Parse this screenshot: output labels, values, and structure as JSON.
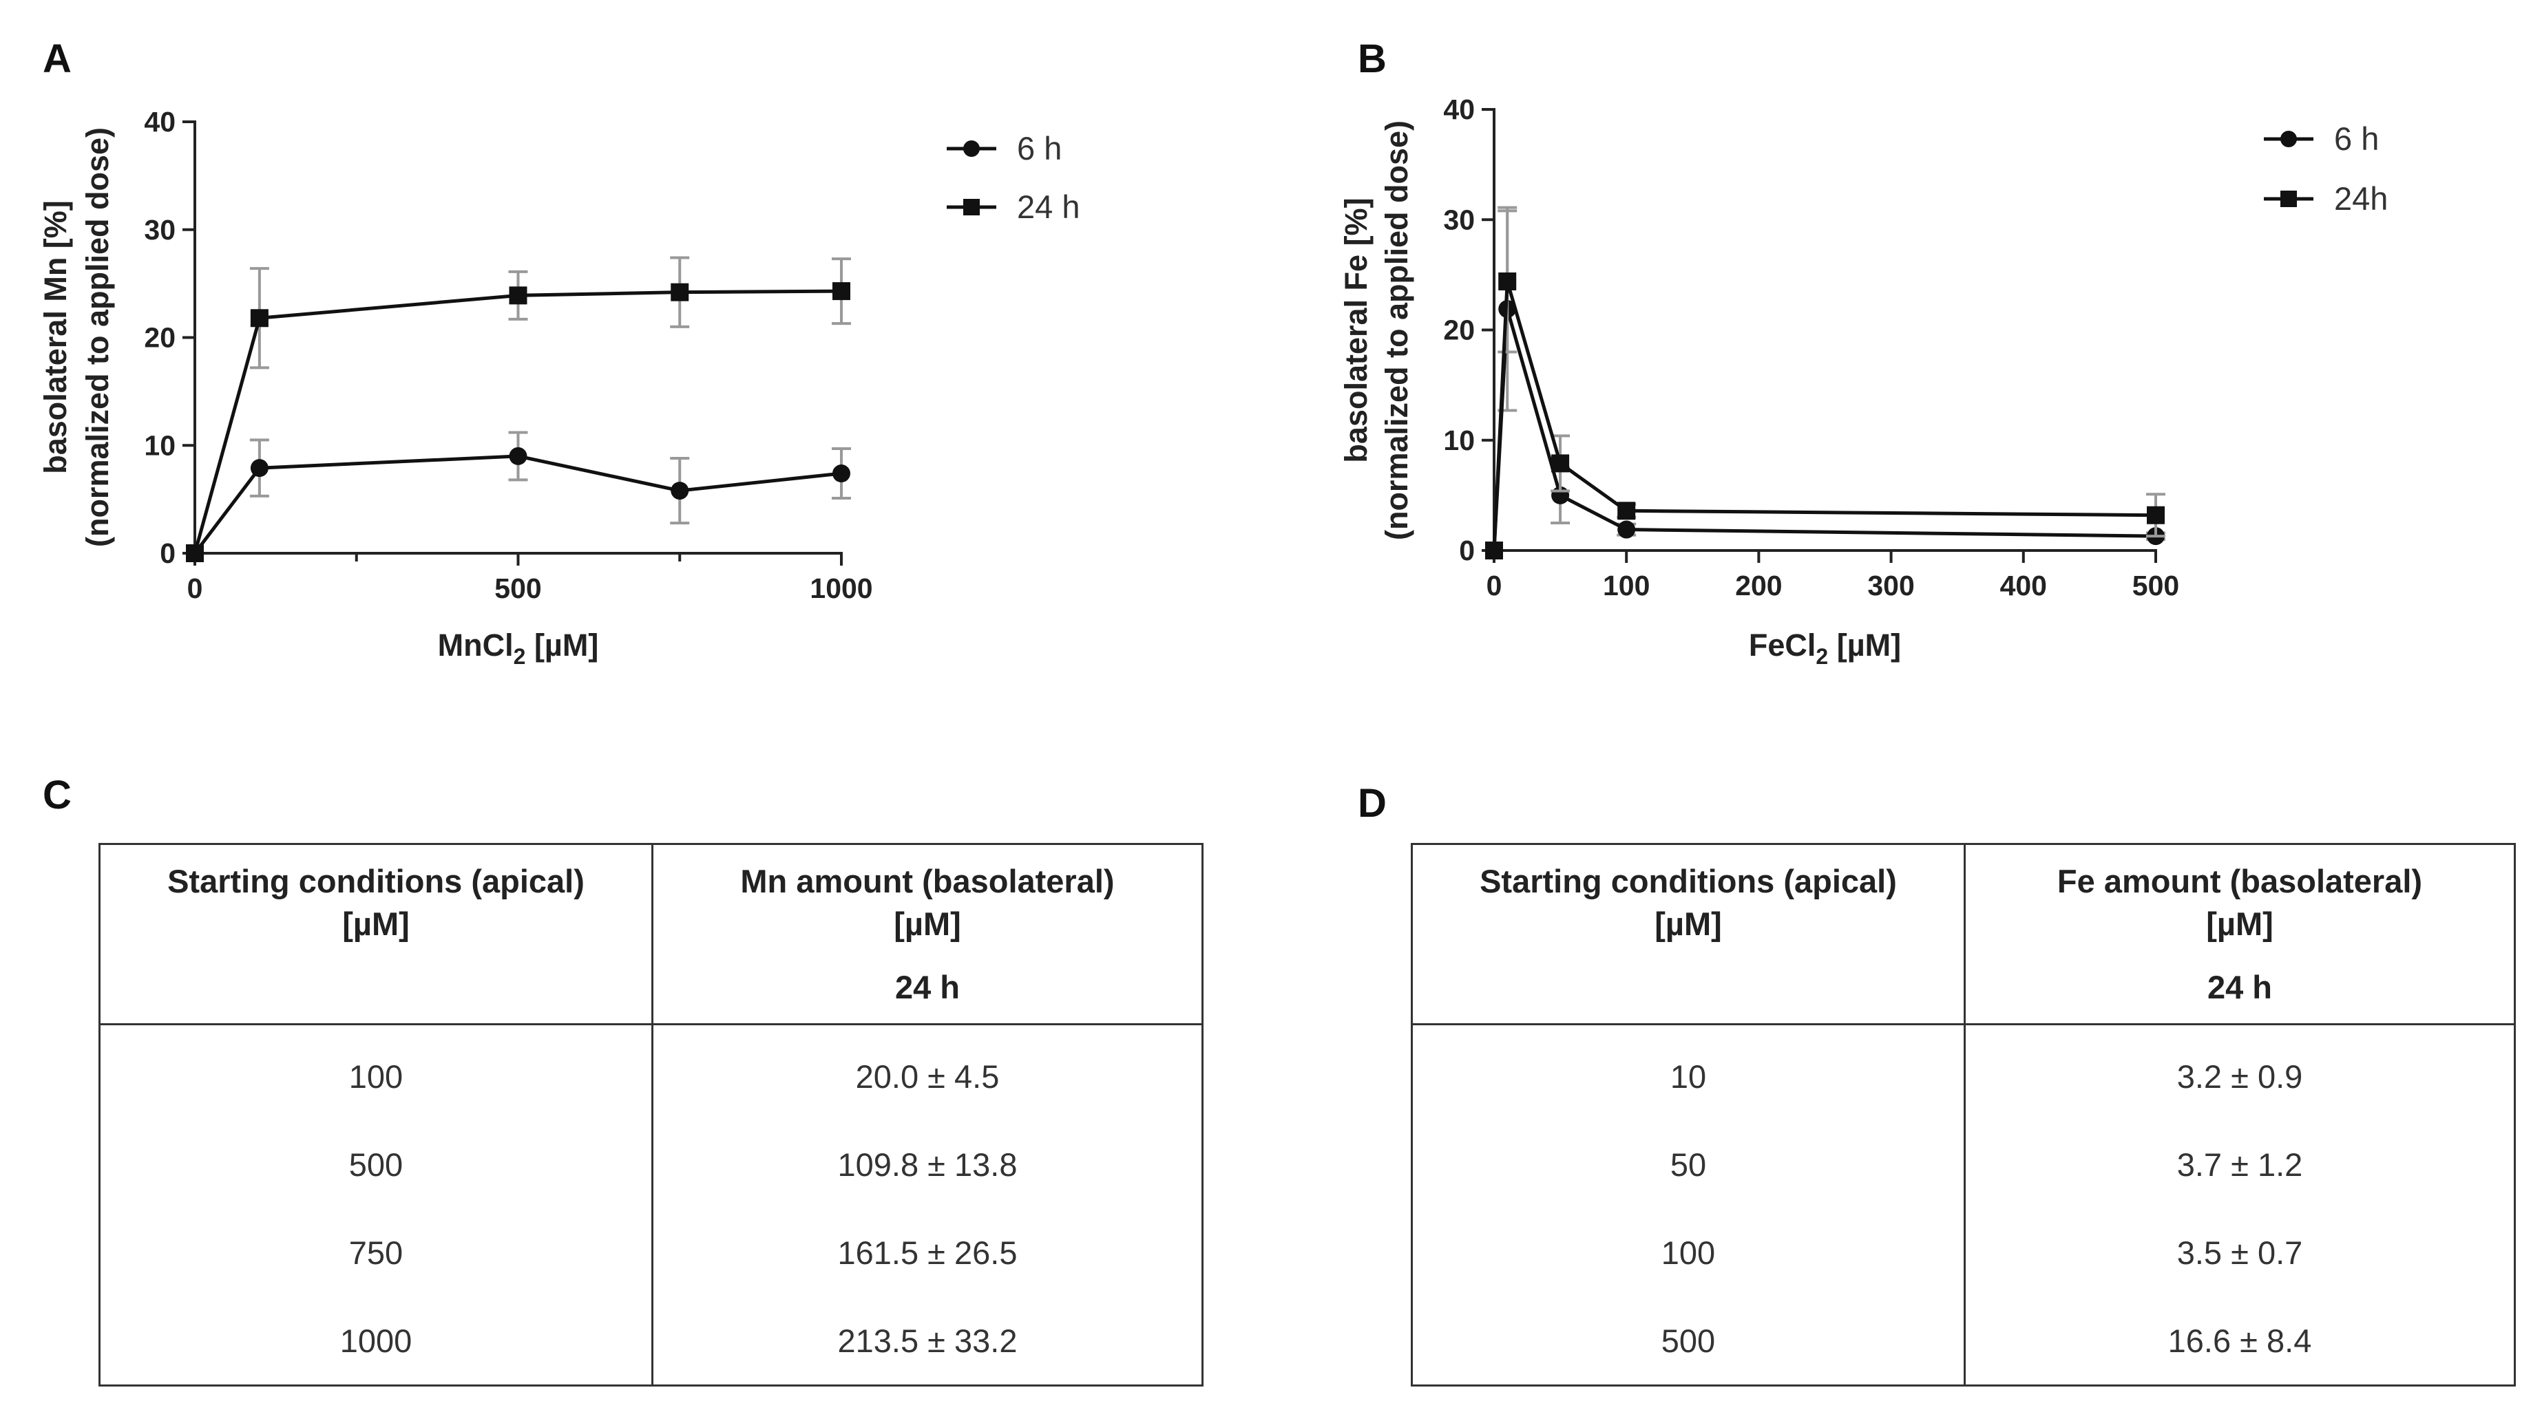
{
  "panels": {
    "a": "A",
    "b": "B",
    "c": "C",
    "d": "D"
  },
  "chart_data": [
    {
      "type": "line",
      "panel": "A",
      "xlabel_main": "MnCl",
      "xlabel_sub": "2",
      "xlabel_unit": " [µM]",
      "ylabel_line1": "basolateral Mn [%]",
      "ylabel_line2": "(normalized to applied dose)",
      "xlim": [
        0,
        1000
      ],
      "ylim": [
        0,
        40
      ],
      "xticks": [
        0,
        500,
        1000
      ],
      "xticks_minor": [
        250,
        750
      ],
      "yticks": [
        0,
        10,
        20,
        30,
        40
      ],
      "x": [
        0,
        100,
        500,
        750,
        1000
      ],
      "series": [
        {
          "name": "6 h",
          "marker": "circle",
          "values": [
            0,
            7.9,
            9.0,
            5.8,
            7.4
          ],
          "errors": [
            0,
            2.6,
            2.2,
            3.0,
            2.3
          ]
        },
        {
          "name": "24 h",
          "marker": "square",
          "values": [
            0,
            21.8,
            23.9,
            24.2,
            24.3
          ],
          "errors": [
            0,
            4.6,
            2.2,
            3.2,
            3.0
          ]
        }
      ],
      "legend_position": "top-right"
    },
    {
      "type": "line",
      "panel": "B",
      "xlabel_main": "FeCl",
      "xlabel_sub": "2",
      "xlabel_unit": " [µM]",
      "ylabel_line1": "basolateral Fe [%]",
      "ylabel_line2": "(normalized to applied dose)",
      "xlim": [
        0,
        500
      ],
      "ylim": [
        0,
        40
      ],
      "xticks": [
        0,
        100,
        200,
        300,
        400,
        500
      ],
      "xticks_minor": [],
      "yticks": [
        0,
        10,
        20,
        30,
        40
      ],
      "x": [
        0,
        10,
        50,
        100,
        500
      ],
      "series": [
        {
          "name": "6 h",
          "marker": "circle",
          "values": [
            0,
            21.9,
            5.0,
            1.9,
            1.3
          ],
          "errors": [
            0,
            9.2,
            2.5,
            0.5,
            0.3
          ]
        },
        {
          "name": "24h",
          "marker": "square",
          "values": [
            0,
            24.4,
            7.9,
            3.6,
            3.2
          ],
          "errors": [
            0,
            6.4,
            2.5,
            0.6,
            1.9
          ]
        }
      ],
      "legend_position": "top-right"
    }
  ],
  "table_c": {
    "header_col1_line1": "Starting conditions (apical)",
    "header_col1_line2": "[µM]",
    "header_col2_line1": "Mn amount (basolateral)",
    "header_col2_line2": "[µM]",
    "header_col2_time": "24 h",
    "rows": [
      {
        "start": "100",
        "amount": "20.0 ± 4.5"
      },
      {
        "start": "500",
        "amount": "109.8 ± 13.8"
      },
      {
        "start": "750",
        "amount": "161.5 ± 26.5"
      },
      {
        "start": "1000",
        "amount": "213.5 ± 33.2"
      }
    ]
  },
  "table_d": {
    "header_col1_line1": "Starting conditions (apical)",
    "header_col1_line2": "[µM]",
    "header_col2_line1": "Fe amount (basolateral)",
    "header_col2_line2": "[µM]",
    "header_col2_time": "24 h",
    "rows": [
      {
        "start": "10",
        "amount": "3.2 ± 0.9"
      },
      {
        "start": "50",
        "amount": "3.7 ± 1.2"
      },
      {
        "start": "100",
        "amount": "3.5 ± 0.7"
      },
      {
        "start": "500",
        "amount": "16.6 ± 8.4"
      }
    ]
  }
}
